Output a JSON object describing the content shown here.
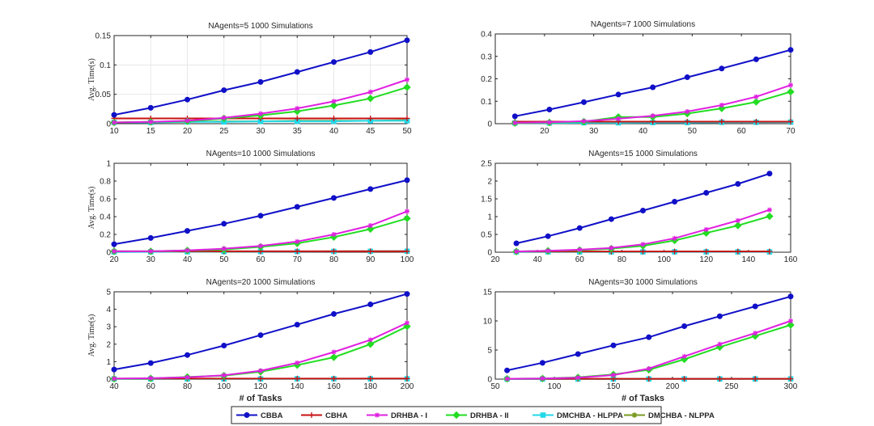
{
  "legend": [
    {
      "name": "CBBA",
      "color": "#1010c8",
      "marker": "dot"
    },
    {
      "name": "CBHA",
      "color": "#c81010",
      "marker": "plus"
    },
    {
      "name": "DRHBA - I",
      "color": "#e020e0",
      "marker": "star"
    },
    {
      "name": "DRHBA - II",
      "color": "#22dd22",
      "marker": "diamond"
    },
    {
      "name": "DMCHBA - HLPPA",
      "color": "#22d8e8",
      "marker": "square"
    },
    {
      "name": "DMCHBA - NLPPA",
      "color": "#7a9a20",
      "marker": "asterisk"
    }
  ],
  "chart_data": [
    {
      "type": "line",
      "title": "NAgents=5 1000 Simulations",
      "xlabel": "",
      "ylabel": "Avg. Time(s)",
      "grid": true,
      "xlim": [
        10,
        50
      ],
      "ylim": [
        0,
        0.15
      ],
      "xticks": [
        10,
        15,
        20,
        25,
        30,
        35,
        40,
        45,
        50
      ],
      "yticks": [
        0,
        0.05,
        0.1,
        0.15
      ],
      "ytick_labels": [
        "0",
        "0.05",
        "0.1",
        "0.15"
      ],
      "x": [
        10,
        15,
        20,
        25,
        30,
        35,
        40,
        45,
        50
      ],
      "series": [
        {
          "name": "CBBA",
          "values": [
            0.015,
            0.027,
            0.041,
            0.057,
            0.071,
            0.088,
            0.105,
            0.122,
            0.142
          ]
        },
        {
          "name": "CBHA",
          "values": [
            0.009,
            0.009,
            0.009,
            0.009,
            0.009,
            0.009,
            0.009,
            0.009,
            0.009
          ]
        },
        {
          "name": "DRHBA - I",
          "values": [
            0.002,
            0.003,
            0.005,
            0.01,
            0.017,
            0.026,
            0.038,
            0.054,
            0.075
          ]
        },
        {
          "name": "DRHBA - II",
          "values": [
            0.002,
            0.003,
            0.004,
            0.009,
            0.014,
            0.021,
            0.031,
            0.043,
            0.062
          ]
        },
        {
          "name": "DMCHBA - HLPPA",
          "values": [
            0.002,
            0.002,
            0.003,
            0.003,
            0.004,
            0.004,
            0.004,
            0.005,
            0.005
          ]
        },
        {
          "name": "DMCHBA - NLPPA",
          "values": [
            0.002,
            0.003,
            0.003,
            0.004,
            0.004,
            0.005,
            0.005,
            0.005,
            0.006
          ]
        }
      ]
    },
    {
      "type": "line",
      "title": "NAgents=7 1000 Simulations",
      "xlabel": "",
      "ylabel": "",
      "grid": false,
      "xlim": [
        10,
        70
      ],
      "ylim": [
        0,
        0.4
      ],
      "xticks": [
        20,
        30,
        40,
        50,
        60,
        70
      ],
      "yticks": [
        0,
        0.1,
        0.2,
        0.3,
        0.4
      ],
      "ytick_labels": [
        "0",
        "0.1",
        "0.2",
        "0.3",
        "0.4"
      ],
      "x": [
        14,
        21,
        28,
        35,
        42,
        49,
        56,
        63,
        70
      ],
      "series": [
        {
          "name": "CBBA",
          "values": [
            0.033,
            0.063,
            0.096,
            0.13,
            0.162,
            0.207,
            0.246,
            0.287,
            0.329
          ]
        },
        {
          "name": "CBHA",
          "values": [
            0.009,
            0.009,
            0.009,
            0.009,
            0.009,
            0.009,
            0.009,
            0.009,
            0.009
          ]
        },
        {
          "name": "DRHBA - I",
          "values": [
            0.004,
            0.006,
            0.011,
            0.022,
            0.035,
            0.054,
            0.083,
            0.12,
            0.172
          ]
        },
        {
          "name": "DRHBA - II",
          "values": [
            0.003,
            0.005,
            0.009,
            0.03,
            0.03,
            0.045,
            0.068,
            0.097,
            0.142
          ]
        },
        {
          "name": "DMCHBA - HLPPA",
          "values": [
            0.003,
            0.003,
            0.004,
            0.004,
            0.005,
            0.005,
            0.006,
            0.006,
            0.007
          ]
        },
        {
          "name": "DMCHBA - NLPPA",
          "values": [
            0.003,
            0.004,
            0.005,
            0.006,
            0.006,
            0.007,
            0.007,
            0.008,
            0.009
          ]
        }
      ]
    },
    {
      "type": "line",
      "title": "NAgents=10 1000 Simulations",
      "xlabel": "",
      "ylabel": "Avg. Time(s)",
      "grid": false,
      "xlim": [
        20,
        100
      ],
      "ylim": [
        0,
        1
      ],
      "xticks": [
        20,
        30,
        40,
        50,
        60,
        70,
        80,
        90,
        100
      ],
      "yticks": [
        0,
        0.2,
        0.4,
        0.6,
        0.8,
        1
      ],
      "ytick_labels": [
        "0",
        "0.2",
        "0.4",
        "0.6",
        "0.8",
        "1"
      ],
      "x": [
        20,
        30,
        40,
        50,
        60,
        70,
        80,
        90,
        100
      ],
      "series": [
        {
          "name": "CBBA",
          "values": [
            0.09,
            0.16,
            0.24,
            0.32,
            0.41,
            0.51,
            0.61,
            0.71,
            0.81
          ]
        },
        {
          "name": "CBHA",
          "values": [
            0.01,
            0.01,
            0.01,
            0.01,
            0.01,
            0.01,
            0.01,
            0.01,
            0.01
          ]
        },
        {
          "name": "DRHBA - I",
          "values": [
            0.01,
            0.01,
            0.02,
            0.04,
            0.07,
            0.12,
            0.2,
            0.3,
            0.46
          ]
        },
        {
          "name": "DRHBA - II",
          "values": [
            0.01,
            0.01,
            0.02,
            0.03,
            0.06,
            0.1,
            0.17,
            0.26,
            0.38
          ]
        },
        {
          "name": "DMCHBA - HLPPA",
          "values": [
            0.003,
            0.004,
            0.005,
            0.006,
            0.007,
            0.008,
            0.009,
            0.01,
            0.011
          ]
        },
        {
          "name": "DMCHBA - NLPPA",
          "values": [
            0.004,
            0.005,
            0.006,
            0.007,
            0.008,
            0.009,
            0.01,
            0.011,
            0.012
          ]
        }
      ]
    },
    {
      "type": "line",
      "title": "NAgents=15 1000 Simulations",
      "xlabel": "",
      "ylabel": "",
      "grid": false,
      "xlim": [
        20,
        160
      ],
      "ylim": [
        0,
        2.5
      ],
      "xticks": [
        20,
        40,
        60,
        80,
        100,
        120,
        140,
        160
      ],
      "yticks": [
        0,
        0.5,
        1,
        1.5,
        2,
        2.5
      ],
      "ytick_labels": [
        "0",
        "0.5",
        "1",
        "1.5",
        "2",
        "2.5"
      ],
      "x": [
        30,
        45,
        60,
        75,
        90,
        105,
        120,
        135,
        150
      ],
      "series": [
        {
          "name": "CBBA",
          "values": [
            0.25,
            0.45,
            0.68,
            0.93,
            1.17,
            1.42,
            1.67,
            1.92,
            2.21
          ]
        },
        {
          "name": "CBHA",
          "values": [
            0.02,
            0.02,
            0.02,
            0.02,
            0.02,
            0.02,
            0.02,
            0.02,
            0.02
          ]
        },
        {
          "name": "DRHBA - I",
          "values": [
            0.02,
            0.04,
            0.07,
            0.12,
            0.22,
            0.39,
            0.64,
            0.89,
            1.19
          ]
        },
        {
          "name": "DRHBA - II",
          "values": [
            0.02,
            0.04,
            0.06,
            0.1,
            0.18,
            0.33,
            0.54,
            0.75,
            1.01
          ]
        },
        {
          "name": "DMCHBA - HLPPA",
          "values": [
            0.01,
            0.01,
            0.01,
            0.01,
            0.01,
            0.01,
            0.01,
            0.01,
            0.01
          ]
        },
        {
          "name": "DMCHBA - NLPPA",
          "values": [
            0.01,
            0.01,
            0.01,
            0.01,
            0.01,
            0.02,
            0.02,
            0.02,
            0.02
          ]
        }
      ]
    },
    {
      "type": "line",
      "title": "NAgents=20 1000 Simulations",
      "xlabel": "# of Tasks",
      "ylabel": "Avg. Time(s)",
      "grid": false,
      "xlim": [
        40,
        200
      ],
      "ylim": [
        0,
        5
      ],
      "xticks": [
        40,
        60,
        80,
        100,
        120,
        140,
        160,
        180,
        200
      ],
      "yticks": [
        0,
        1,
        2,
        3,
        4,
        5
      ],
      "ytick_labels": [
        "0",
        "1",
        "2",
        "3",
        "4",
        "5"
      ],
      "x": [
        40,
        60,
        80,
        100,
        120,
        140,
        160,
        180,
        200
      ],
      "series": [
        {
          "name": "CBBA",
          "values": [
            0.55,
            0.92,
            1.38,
            1.92,
            2.52,
            3.12,
            3.73,
            4.28,
            4.88
          ]
        },
        {
          "name": "CBHA",
          "values": [
            0.03,
            0.03,
            0.03,
            0.03,
            0.03,
            0.03,
            0.03,
            0.03,
            0.03
          ]
        },
        {
          "name": "DRHBA - I",
          "values": [
            0.03,
            0.05,
            0.1,
            0.22,
            0.48,
            0.93,
            1.55,
            2.25,
            3.22
          ]
        },
        {
          "name": "DRHBA - II",
          "values": [
            0.02,
            0.04,
            0.12,
            0.2,
            0.42,
            0.8,
            1.25,
            2.0,
            3.02
          ]
        },
        {
          "name": "DMCHBA - HLPPA",
          "values": [
            0.01,
            0.01,
            0.01,
            0.01,
            0.01,
            0.02,
            0.02,
            0.02,
            0.02
          ]
        },
        {
          "name": "DMCHBA - NLPPA",
          "values": [
            0.01,
            0.01,
            0.02,
            0.02,
            0.02,
            0.02,
            0.02,
            0.03,
            0.03
          ]
        }
      ]
    },
    {
      "type": "line",
      "title": "NAgents=30 1000 Simulations",
      "xlabel": "# of Tasks",
      "ylabel": "",
      "grid": false,
      "xlim": [
        50,
        300
      ],
      "ylim": [
        0,
        15
      ],
      "xticks": [
        50,
        100,
        150,
        200,
        250,
        300
      ],
      "yticks": [
        0,
        5,
        10,
        15
      ],
      "ytick_labels": [
        "0",
        "5",
        "10",
        "15"
      ],
      "x": [
        60,
        90,
        120,
        150,
        180,
        210,
        240,
        270,
        300
      ],
      "series": [
        {
          "name": "CBBA",
          "values": [
            1.5,
            2.8,
            4.3,
            5.8,
            7.2,
            9.1,
            10.8,
            12.5,
            14.2
          ]
        },
        {
          "name": "CBHA",
          "values": [
            0.05,
            0.05,
            0.05,
            0.05,
            0.05,
            0.05,
            0.05,
            0.05,
            0.05
          ]
        },
        {
          "name": "DRHBA - I",
          "values": [
            0.05,
            0.1,
            0.25,
            0.7,
            1.8,
            3.9,
            6.0,
            7.9,
            10.0
          ]
        },
        {
          "name": "DRHBA - II",
          "values": [
            0.05,
            0.1,
            0.3,
            0.8,
            1.6,
            3.4,
            5.5,
            7.4,
            9.3
          ]
        },
        {
          "name": "DMCHBA - HLPPA",
          "values": [
            0.02,
            0.02,
            0.02,
            0.02,
            0.03,
            0.03,
            0.03,
            0.03,
            0.04
          ]
        },
        {
          "name": "DMCHBA - NLPPA",
          "values": [
            0.02,
            0.03,
            0.03,
            0.03,
            0.04,
            0.04,
            0.04,
            0.05,
            0.05
          ]
        }
      ]
    }
  ]
}
